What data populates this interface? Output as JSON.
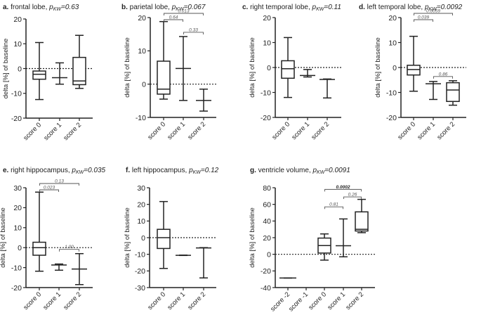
{
  "figure": {
    "ylabel": "delta [%] of baseline"
  },
  "chart_data": [
    {
      "type": "box",
      "panel": "a",
      "title_label": "a.",
      "title": "frontal lobe,",
      "p_label": "p",
      "p_sub": "KW",
      "p_value": "=0.63",
      "ylabel": "delta [%] of baseline",
      "ylim": [
        -20,
        20
      ],
      "yticks": [
        20,
        10,
        0,
        -10,
        -20
      ],
      "categories": [
        "score 0",
        "score 1",
        "score 2"
      ],
      "boxes": [
        {
          "min": -12.5,
          "q1": -4.3,
          "median": -2.3,
          "q3": -1.0,
          "max": 10.5
        },
        {
          "min": -6.3,
          "q1": null,
          "median": -3.7,
          "q3": null,
          "max": 2.3
        },
        {
          "min": -8.0,
          "q1": -6.5,
          "median": -5.0,
          "q3": 4.5,
          "max": 13.4
        }
      ],
      "reference_line": 0,
      "comparisons": []
    },
    {
      "type": "box",
      "panel": "b",
      "title_label": "b.",
      "title": "parietal lobe,",
      "p_label": "p",
      "p_sub": "KW",
      "p_value": "=0.067",
      "ylabel": "delta [%] of baseline",
      "ylim": [
        -10,
        20
      ],
      "yticks": [
        20,
        10,
        0,
        -10
      ],
      "categories": [
        "score 0",
        "score 1",
        "score 2"
      ],
      "boxes": [
        {
          "min": -4.5,
          "q1": -3.0,
          "median": -1.5,
          "q3": 6.9,
          "max": 18.8
        },
        {
          "min": -4.9,
          "q1": null,
          "median": 4.7,
          "q3": null,
          "max": 14.3
        },
        {
          "min": -8.1,
          "q1": null,
          "median": -4.9,
          "q3": null,
          "max": -1.5
        }
      ],
      "reference_line": 0,
      "comparisons": [
        {
          "from": 0,
          "to": 1,
          "label": "0.64",
          "level": 1,
          "bold": false
        },
        {
          "from": 0,
          "to": 2,
          "label": "0.013",
          "level": 2,
          "bold": false
        },
        {
          "from": 1,
          "to": 2,
          "label": "0.33",
          "level": 0,
          "bold": false
        }
      ]
    },
    {
      "type": "box",
      "panel": "c",
      "title_label": "c.",
      "title": "right temporal lobe,",
      "p_label": "p",
      "p_sub": "KW",
      "p_value": "=0.11",
      "ylabel": "delta [%] of baseline",
      "ylim": [
        -20,
        20
      ],
      "yticks": [
        20,
        10,
        0,
        -10,
        -20
      ],
      "categories": [
        "score 0",
        "score 1",
        "score 2"
      ],
      "boxes": [
        {
          "min": -12.0,
          "q1": -4.3,
          "median": -0.5,
          "q3": 2.7,
          "max": 12.0
        },
        {
          "min": -3.8,
          "q1": null,
          "median": -3.2,
          "q3": null,
          "max": -0.8
        },
        {
          "min": -12.2,
          "q1": null,
          "median": -4.8,
          "q3": null,
          "max": -4.6
        }
      ],
      "reference_line": 0,
      "comparisons": []
    },
    {
      "type": "box",
      "panel": "d",
      "title_label": "d.",
      "title": "left temporal lobe,",
      "p_label": "p",
      "p_sub": "KW",
      "p_value": "=0.0092",
      "ylabel": "delta [%] of baseline",
      "ylim": [
        -20,
        20
      ],
      "yticks": [
        20,
        10,
        0,
        -10,
        -20
      ],
      "categories": [
        "score 0",
        "score 1",
        "score 2"
      ],
      "boxes": [
        {
          "min": -9.5,
          "q1": -3.0,
          "median": -0.8,
          "q3": 0.9,
          "max": 12.5
        },
        {
          "min": -12.8,
          "q1": null,
          "median": -6.5,
          "q3": null,
          "max": -5.6
        },
        {
          "min": -15.1,
          "q1": -13.6,
          "median": -9.0,
          "q3": -6.1,
          "max": -5.3
        }
      ],
      "reference_line": 0,
      "comparisons": [
        {
          "from": 0,
          "to": 1,
          "label": "0.039",
          "level": 1,
          "bold": false
        },
        {
          "from": 0,
          "to": 2,
          "label": "0.0059",
          "level": 2,
          "bold": false
        },
        {
          "from": 1,
          "to": 2,
          "label": "0.86",
          "level": 0,
          "bold": false
        }
      ]
    },
    {
      "type": "box",
      "panel": "e",
      "title_label": "e.",
      "title": "right hippocampus,",
      "p_label": "p",
      "p_sub": "KW",
      "p_value": "=0.035",
      "ylabel": "delta [%] of baseline",
      "ylim": [
        -20,
        30
      ],
      "yticks": [
        30,
        20,
        10,
        0,
        -10,
        -20
      ],
      "categories": [
        "score 0",
        "score 1",
        "score 2"
      ],
      "boxes": [
        {
          "min": -11.8,
          "q1": -3.8,
          "median": 0.0,
          "q3": 2.7,
          "max": 27.8
        },
        {
          "min": -11.3,
          "q1": null,
          "median": -8.7,
          "q3": null,
          "max": -8.2
        },
        {
          "min": -18.5,
          "q1": null,
          "median": -10.7,
          "q3": null,
          "max": -3.0
        }
      ],
      "reference_line": 0,
      "comparisons": [
        {
          "from": 0,
          "to": 1,
          "label": "0.023",
          "level": 1,
          "bold": false
        },
        {
          "from": 0,
          "to": 2,
          "label": "0.13",
          "level": 2,
          "bold": false
        },
        {
          "from": 1,
          "to": 2,
          "label": "1.00",
          "level": 0,
          "bold": false
        }
      ]
    },
    {
      "type": "box",
      "panel": "f",
      "title_label": "f.",
      "title": "left hippocampus,",
      "p_label": "p",
      "p_sub": "KW",
      "p_value": "=0.12",
      "ylabel": "delta [%] of baseline",
      "ylim": [
        -30,
        30
      ],
      "yticks": [
        30,
        20,
        10,
        0,
        -10,
        -20,
        -30
      ],
      "categories": [
        "score 0",
        "score 1",
        "score 2"
      ],
      "boxes": [
        {
          "min": -18.5,
          "q1": -6.5,
          "median": 0.0,
          "q3": 5.0,
          "max": 21.7
        },
        {
          "min": -10.7,
          "q1": null,
          "median": -10.6,
          "q3": null,
          "max": -10.5
        },
        {
          "min": -24.2,
          "q1": null,
          "median": -6.2,
          "q3": null,
          "max": -6.0
        }
      ],
      "reference_line": 0,
      "comparisons": []
    },
    {
      "type": "box",
      "panel": "g",
      "title_label": "g.",
      "title": "ventricle volume,",
      "p_label": "p",
      "p_sub": "KW",
      "p_value": "=0.0091",
      "ylabel": "delta [%] of baseline",
      "ylim": [
        -40,
        80
      ],
      "yticks": [
        80,
        60,
        40,
        20,
        0,
        -20,
        -40
      ],
      "categories": [
        "score -2",
        "score -1",
        "score 0",
        "score 1",
        "score 2"
      ],
      "boxes": [
        {
          "min": -28.5,
          "q1": null,
          "median": -28.5,
          "q3": null,
          "max": -28.5
        },
        null,
        {
          "min": -7.0,
          "q1": 1.5,
          "median": 10.5,
          "q3": 19.5,
          "max": 24.5
        },
        {
          "min": -3.0,
          "q1": null,
          "median": 10.3,
          "q3": null,
          "max": 42.5
        },
        {
          "min": 26.0,
          "q1": 28.0,
          "median": 30.0,
          "q3": 51.0,
          "max": 66.0
        }
      ],
      "reference_line": 0,
      "comparisons": [
        {
          "from": 2,
          "to": 3,
          "label": "0.81",
          "level": 0,
          "bold": false
        },
        {
          "from": 3,
          "to": 4,
          "label": "0.26",
          "level": 1,
          "bold": false
        },
        {
          "from": 2,
          "to": 4,
          "label": "0.0002",
          "level": 2,
          "bold": true
        }
      ]
    }
  ]
}
